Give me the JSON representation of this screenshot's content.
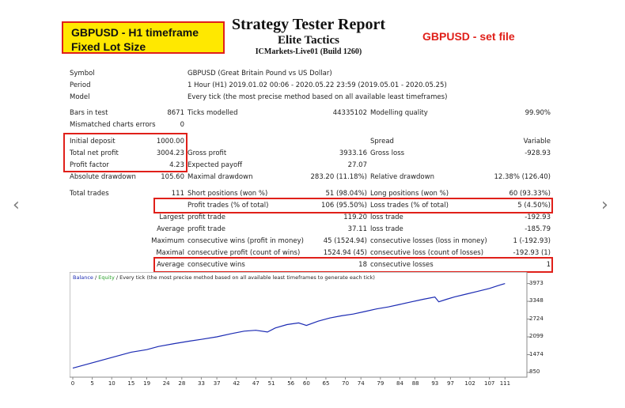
{
  "nav": {
    "prev_icon": "chevron-left-icon",
    "next_icon": "chevron-right-icon",
    "prev_glyph": "‹",
    "next_glyph": "›"
  },
  "highlight": {
    "line1": "GBPUSD - H1 timeframe",
    "line2": "Fixed Lot Size"
  },
  "header": {
    "title": "Strategy Tester Report",
    "ea_name": "Elite Tactics",
    "server": "ICMarkets-Live01 (Build 1260)"
  },
  "set_file_label": "GBPUSD - set file",
  "info": {
    "symbol_label": "Symbol",
    "symbol_value": "GBPUSD (Great Britain Pound vs US Dollar)",
    "period_label": "Period",
    "period_value": "1 Hour (H1) 2019.01.02 00:06 - 2020.05.22 23:59 (2019.05.01 - 2020.05.25)",
    "model_label": "Model",
    "model_value": "Every tick (the most precise method based on all available least timeframes)"
  },
  "stats": {
    "bars_label": "Bars in test",
    "bars_value": "8671",
    "ticks_label": "Ticks modelled",
    "ticks_value": "44335102",
    "quality_label": "Modelling quality",
    "quality_value": "99.90%",
    "mismatch_label": "Mismatched charts errors",
    "mismatch_value": "0",
    "spread_label": "Spread",
    "spread_value": "Variable",
    "deposit_label": "Initial deposit",
    "deposit_value": "1000.00",
    "net_label": "Total net profit",
    "net_value": "3004.23",
    "gross_profit_label": "Gross profit",
    "gross_profit_value": "3933.16",
    "gross_loss_label": "Gross loss",
    "gross_loss_value": "-928.93",
    "pf_label": "Profit factor",
    "pf_value": "4.23",
    "payoff_label": "Expected payoff",
    "payoff_value": "27.07",
    "abs_dd_label": "Absolute drawdown",
    "abs_dd_value": "105.60",
    "max_dd_label": "Maximal drawdown",
    "max_dd_value": "283.20 (11.18%)",
    "rel_dd_label": "Relative drawdown",
    "rel_dd_value": "12.38% (126.40)",
    "total_label": "Total trades",
    "total_value": "111",
    "short_label": "Short positions (won %)",
    "short_value": "51 (98.04%)",
    "long_label": "Long positions (won %)",
    "long_value": "60 (93.33%)",
    "profit_trades_label": "Profit trades (% of total)",
    "profit_trades_value": "106 (95.50%)",
    "loss_trades_label": "Loss trades (% of total)",
    "loss_trades_value": "5 (4.50%)",
    "largest_label": "Largest",
    "largest_pt_label": "profit trade",
    "largest_pt_value": "119.20",
    "largest_lt_label": "loss trade",
    "largest_lt_value": "-192.93",
    "average_label": "Average",
    "average_pt_label": "profit trade",
    "average_pt_value": "37.11",
    "average_lt_label": "loss trade",
    "average_lt_value": "-185.79",
    "maximum_label": "Maximum",
    "max_cw_label": "consecutive wins (profit in money)",
    "max_cw_value": "45 (1524.94)",
    "max_cl_label": "consecutive losses (loss in money)",
    "max_cl_value": "1 (-192.93)",
    "maximal_label": "Maximal",
    "maximal_cp_label": "consecutive profit (count of wins)",
    "maximal_cp_value": "1524.94 (45)",
    "maximal_cl_label": "consecutive loss (count of losses)",
    "maximal_cl_value": "-192.93 (1)",
    "avg2_label": "Average",
    "avg_cw_label": "consecutive wins",
    "avg_cw_value": "18",
    "avg_cl_label": "consecutive losses",
    "avg_cl_value": "1"
  },
  "chart_data": {
    "type": "line",
    "legend_balance": "Balance",
    "legend_sep1": " / ",
    "legend_equity": "Equity",
    "legend_rest": " / Every tick (the most precise method based on all available least timeframes to generate each tick)",
    "colors": {
      "balance": "#1c2bb3",
      "equity": "#2aa02a",
      "border": "#8a8a8a"
    },
    "xlabels": [
      "0",
      "5",
      "10",
      "15",
      "19",
      "24",
      "28",
      "33",
      "37",
      "42",
      "47",
      "51",
      "56",
      "60",
      "65",
      "70",
      "74",
      "79",
      "84",
      "88",
      "93",
      "97",
      "102",
      "107",
      "111"
    ],
    "ylabels": [
      "3973",
      "3348",
      "2724",
      "2099",
      "1474",
      "850"
    ],
    "ylim": [
      850,
      4100
    ],
    "xlim": [
      0,
      115
    ],
    "series": [
      {
        "name": "Balance",
        "x": [
          0,
          4,
          8,
          12,
          15,
          19,
          22,
          26,
          30,
          33,
          37,
          41,
          44,
          47,
          50,
          52,
          55,
          58,
          60,
          63,
          66,
          69,
          72,
          75,
          78,
          81,
          84,
          87,
          90,
          93,
          94,
          96,
          98,
          101,
          104,
          107,
          109,
          111
        ],
        "y": [
          1000,
          1150,
          1300,
          1450,
          1560,
          1650,
          1760,
          1860,
          1950,
          2010,
          2100,
          2220,
          2300,
          2330,
          2270,
          2410,
          2530,
          2590,
          2500,
          2650,
          2760,
          2840,
          2900,
          2990,
          3080,
          3150,
          3240,
          3330,
          3420,
          3500,
          3330,
          3420,
          3500,
          3600,
          3700,
          3800,
          3890,
          3973
        ]
      }
    ]
  }
}
